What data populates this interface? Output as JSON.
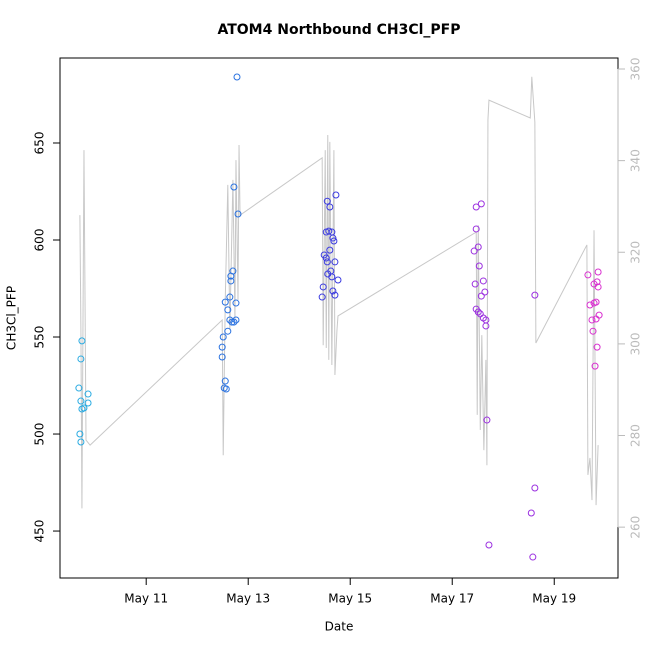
{
  "chart_data": {
    "type": "scatter",
    "title": "ATOM4 Northbound CH3Cl_PFP",
    "x_label": "Date",
    "y_label": "CH3Cl_PFP",
    "xlim": [
      9.31,
      20.25
    ],
    "xticks": [
      {
        "value": 11,
        "label": "May 11"
      },
      {
        "value": 13,
        "label": "May 13"
      },
      {
        "value": 15,
        "label": "May 15"
      },
      {
        "value": 17,
        "label": "May 17"
      },
      {
        "value": 19,
        "label": "May 19"
      }
    ],
    "ylim": [
      425.8,
      693.8
    ],
    "yticks": [
      450,
      500,
      550,
      600,
      650
    ],
    "y2lim": [
      248.9,
      362.4
    ],
    "y2ticks": [
      260,
      280,
      300,
      320,
      340,
      360
    ],
    "y2_color": "#bbbbbb",
    "series": [
      {
        "color": "#29abe2",
        "x": [
          9.68,
          9.7,
          9.72,
          9.72,
          9.74,
          9.72,
          9.74,
          9.78,
          9.86,
          9.86
        ],
        "values": [
          523.7,
          500,
          495.9,
          538.7,
          548,
          517,
          512.9,
          513.4,
          520.6,
          516
        ]
      },
      {
        "color": "#2a72e0",
        "x": [
          12.78,
          12.72,
          12.8,
          12.55,
          12.6,
          12.64,
          12.66,
          12.7,
          12.66,
          12.76,
          12.51,
          12.49,
          12.49,
          12.55,
          12.57,
          12.53,
          12.6,
          12.64,
          12.68,
          12.72,
          12.76
        ],
        "values": [
          684,
          627.3,
          613.4,
          568,
          564,
          570.6,
          581.4,
          584,
          578.9,
          567.5,
          550,
          544.8,
          539.7,
          527.3,
          523.2,
          523.7,
          553,
          558.8,
          557.7,
          557.7,
          558.8
        ]
      },
      {
        "color": "#3a3ae0",
        "x": [
          14.72,
          14.55,
          14.6,
          14.53,
          14.58,
          14.64,
          14.68,
          14.66,
          14.49,
          14.53,
          14.55,
          14.6,
          14.7,
          14.62,
          14.64,
          14.47,
          14.56,
          14.45,
          14.66,
          14.7,
          14.76
        ],
        "values": [
          623.2,
          620,
          617,
          604.1,
          604.6,
          604.1,
          599.5,
          601,
          592.3,
          590.7,
          588.7,
          594.8,
          588.7,
          584,
          581,
          575.8,
          582.5,
          570.6,
          573.7,
          571.6,
          579.4
        ]
      },
      {
        "color": "#9b30e0",
        "x": [
          17.47,
          17.57,
          17.47,
          17.51,
          17.43,
          17.53,
          17.61,
          17.45,
          17.64,
          17.57,
          17.47,
          17.51,
          17.55,
          17.61,
          17.66,
          17.66,
          17.68,
          17.72,
          18.62,
          18.62,
          18.55,
          18.58
        ],
        "values": [
          617,
          618.6,
          605.7,
          596.4,
          594.3,
          586.6,
          578.9,
          577.3,
          573.2,
          571.1,
          564.4,
          562.9,
          561.9,
          559.8,
          558.8,
          555.7,
          507.2,
          442.8,
          571.6,
          472.2,
          459.3,
          436.6
        ]
      },
      {
        "color": "#d930d0",
        "x": [
          19.66,
          19.7,
          19.76,
          19.74,
          19.78,
          19.82,
          19.78,
          19.84,
          19.86,
          19.86,
          19.8,
          19.82,
          19.88,
          19.84
        ],
        "values": [
          582,
          566.5,
          553,
          558.8,
          567.5,
          568,
          577.3,
          578.4,
          583.5,
          575.8,
          535,
          559.3,
          561.3,
          544.8
        ]
      },
      {
        "type": "line",
        "axis": "y2",
        "color": "#c8c8c8",
        "x": [
          9.7,
          9.72,
          9.74,
          9.78,
          9.82,
          9.9,
          12.49,
          12.51,
          12.55,
          12.6,
          12.64,
          12.7,
          12.74,
          12.76,
          12.8,
          12.82,
          12.84,
          14.45,
          14.47,
          14.51,
          14.53,
          14.56,
          14.58,
          14.6,
          14.64,
          14.68,
          14.7,
          14.74,
          14.76,
          17.47,
          17.49,
          17.51,
          17.55,
          17.58,
          17.62,
          17.66,
          17.68,
          17.7,
          17.72,
          18.53,
          18.56,
          18.62,
          18.64,
          19.64,
          19.66,
          19.7,
          19.74,
          19.78,
          19.82,
          19.86
        ],
        "values": [
          328.1,
          303.0,
          264.1,
          342.3,
          279.0,
          277.9,
          305.2,
          275.7,
          309.6,
          334.7,
          303.0,
          335.8,
          305.2,
          340.1,
          309.6,
          343.4,
          328.1,
          340.6,
          299.7,
          342.3,
          299.1,
          345.6,
          296.5,
          344.1,
          295.4,
          342.3,
          293.2,
          303.0,
          306.1,
          324.4,
          284.5,
          325.9,
          281.2,
          301.9,
          276.8,
          296.5,
          273.5,
          348.9,
          353.2,
          349.3,
          358.3,
          348.4,
          300.2,
          321.6,
          271.4,
          275.1,
          265.9,
          324.8,
          264.8,
          277.9
        ]
      }
    ]
  }
}
